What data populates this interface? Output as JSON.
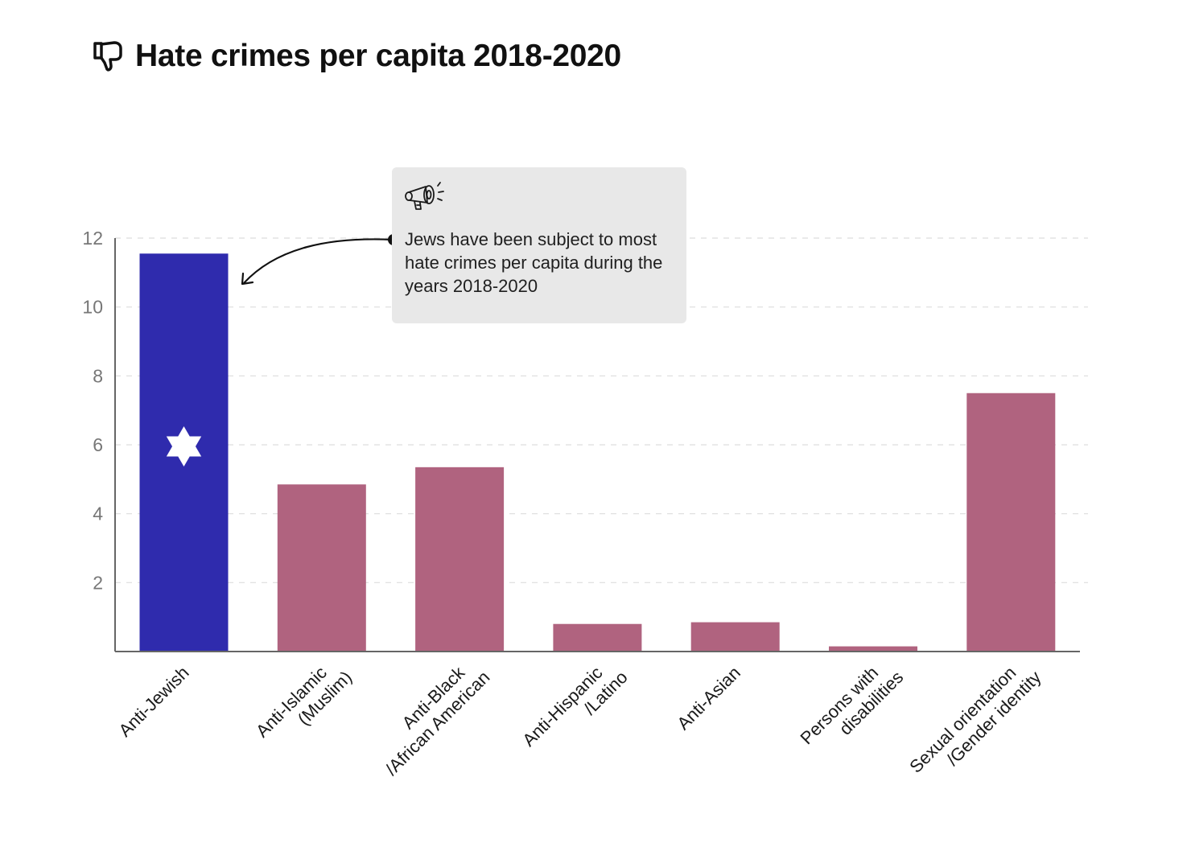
{
  "header": {
    "title": "Hate crimes per capita 2018-2020",
    "icon": "thumbs-down-icon"
  },
  "callout": {
    "icon": "megaphone-icon",
    "text": "Jews have been subject to most hate crimes per capita during the years 2018-2020",
    "points_to": "Anti-Jewish"
  },
  "colors": {
    "highlight_bar": "#2f2bad",
    "default_bar": "#b0637f",
    "callout_bg": "#e8e8e8",
    "grid": "#dddddd",
    "axis": "#666666"
  },
  "chart_data": {
    "type": "bar",
    "title": "Hate crimes per capita 2018-2020",
    "xlabel": "",
    "ylabel": "",
    "ylim": [
      0,
      12
    ],
    "yticks": [
      2,
      4,
      6,
      8,
      10,
      12
    ],
    "grid": true,
    "categories": [
      "Anti-Jewish",
      "Anti-Islamic (Muslim)",
      "Anti-Black /African American",
      "Anti-Hispanic /Latino",
      "Anti-Asian",
      "Persons with disabilities",
      "Sexual orientation /Gender identity"
    ],
    "category_label_lines": [
      [
        "Anti-Jewish"
      ],
      [
        "Anti-Islamic",
        "(Muslim)"
      ],
      [
        "Anti-Black",
        "/African American"
      ],
      [
        "Anti-Hispanic",
        "/Latino"
      ],
      [
        "Anti-Asian"
      ],
      [
        "Persons with",
        "disabilities"
      ],
      [
        "Sexual orientation",
        "/Gender identity"
      ]
    ],
    "values": [
      11.55,
      4.85,
      5.35,
      0.8,
      0.85,
      0.15,
      7.5
    ],
    "highlighted": [
      true,
      false,
      false,
      false,
      false,
      false,
      false
    ],
    "highlight_marker": "star-of-david"
  }
}
